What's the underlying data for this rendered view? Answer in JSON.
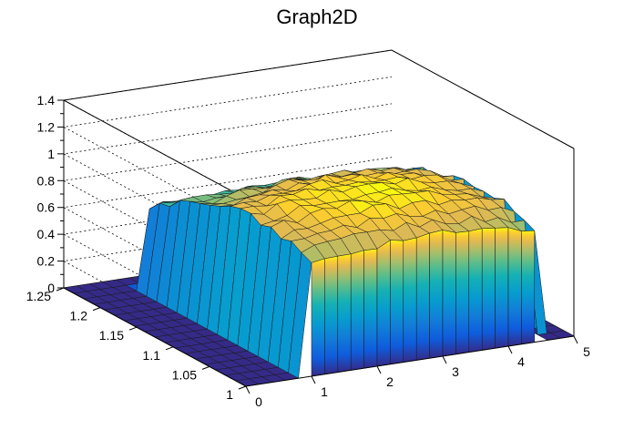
{
  "window": {
    "title": "Graph2D"
  },
  "chart_data": {
    "type": "surface",
    "title": "Graph2D",
    "xlabel": "",
    "ylabel": "",
    "zlabel": "",
    "x_range": [
      0,
      5
    ],
    "y_range": [
      1,
      1.25
    ],
    "z_range": [
      0,
      1.4
    ],
    "x_ticks": [
      0,
      1,
      2,
      3,
      4,
      5
    ],
    "x_tick_labels": [
      "0",
      "1",
      "2",
      "3",
      "4",
      "5"
    ],
    "y_ticks": [
      1,
      1.05,
      1.1,
      1.15,
      1.2,
      1.25
    ],
    "y_tick_labels": [
      "1",
      "1.05",
      "1.1",
      "1.15",
      "1.2",
      "1.25"
    ],
    "z_ticks": [
      0,
      0.2,
      0.4,
      0.6,
      0.8,
      1,
      1.2,
      1.4
    ],
    "z_tick_labels": [
      "0",
      "0.2",
      "0.4",
      "0.6",
      "0.8",
      "1",
      "1.2",
      "1.4"
    ],
    "grid": true,
    "colormap": "viridis-like (blue to yellow)",
    "surface": {
      "x_bins": 25,
      "y_bins": 18,
      "plateau_x_range": [
        0.9,
        4.45
      ],
      "plateau_y_range": [
        1.0,
        1.225
      ],
      "base_level": 0,
      "edge_level_low_x": 0.6,
      "peak_level": 1.05
    }
  }
}
